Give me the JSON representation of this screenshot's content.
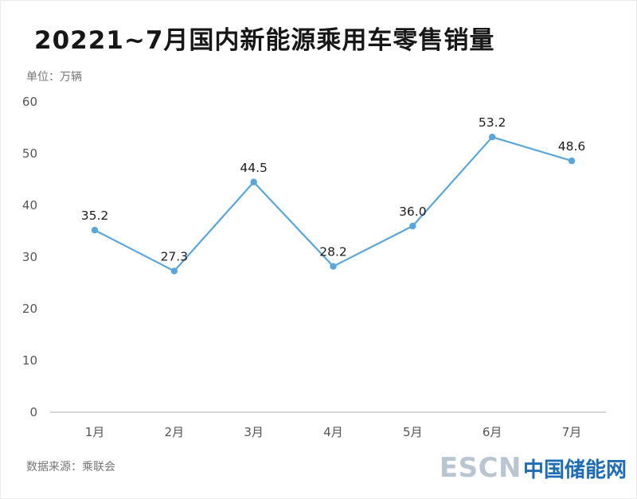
{
  "title": "20221~7月国内新能源乘用车零售销量",
  "unit_label": "单位：万辆",
  "source_label": "数据来源：乘联会",
  "logo": {
    "escn": "ESCN",
    "site": "中国储能网",
    "escn_color": "#b9c6d2",
    "site_color": "#1e6cb5"
  },
  "chart_data": {
    "type": "line",
    "title": "20221~7月国内新能源乘用车零售销量",
    "categories": [
      "1月",
      "2月",
      "3月",
      "4月",
      "5月",
      "6月",
      "7月"
    ],
    "values": [
      35.2,
      27.3,
      44.5,
      28.2,
      36.0,
      53.2,
      48.6
    ],
    "value_labels": [
      "35.2",
      "27.3",
      "44.5",
      "28.2",
      "36.0",
      "53.2",
      "48.6"
    ],
    "ylabel": "万辆",
    "xlabel": "",
    "ylim": [
      0,
      60
    ],
    "yticks": [
      0,
      10,
      20,
      30,
      40,
      50,
      60
    ],
    "grid": false,
    "legend_position": "none",
    "line_color": "#58a6dc",
    "marker_color": "#58a6dc",
    "axis_color": "#cccccc"
  }
}
